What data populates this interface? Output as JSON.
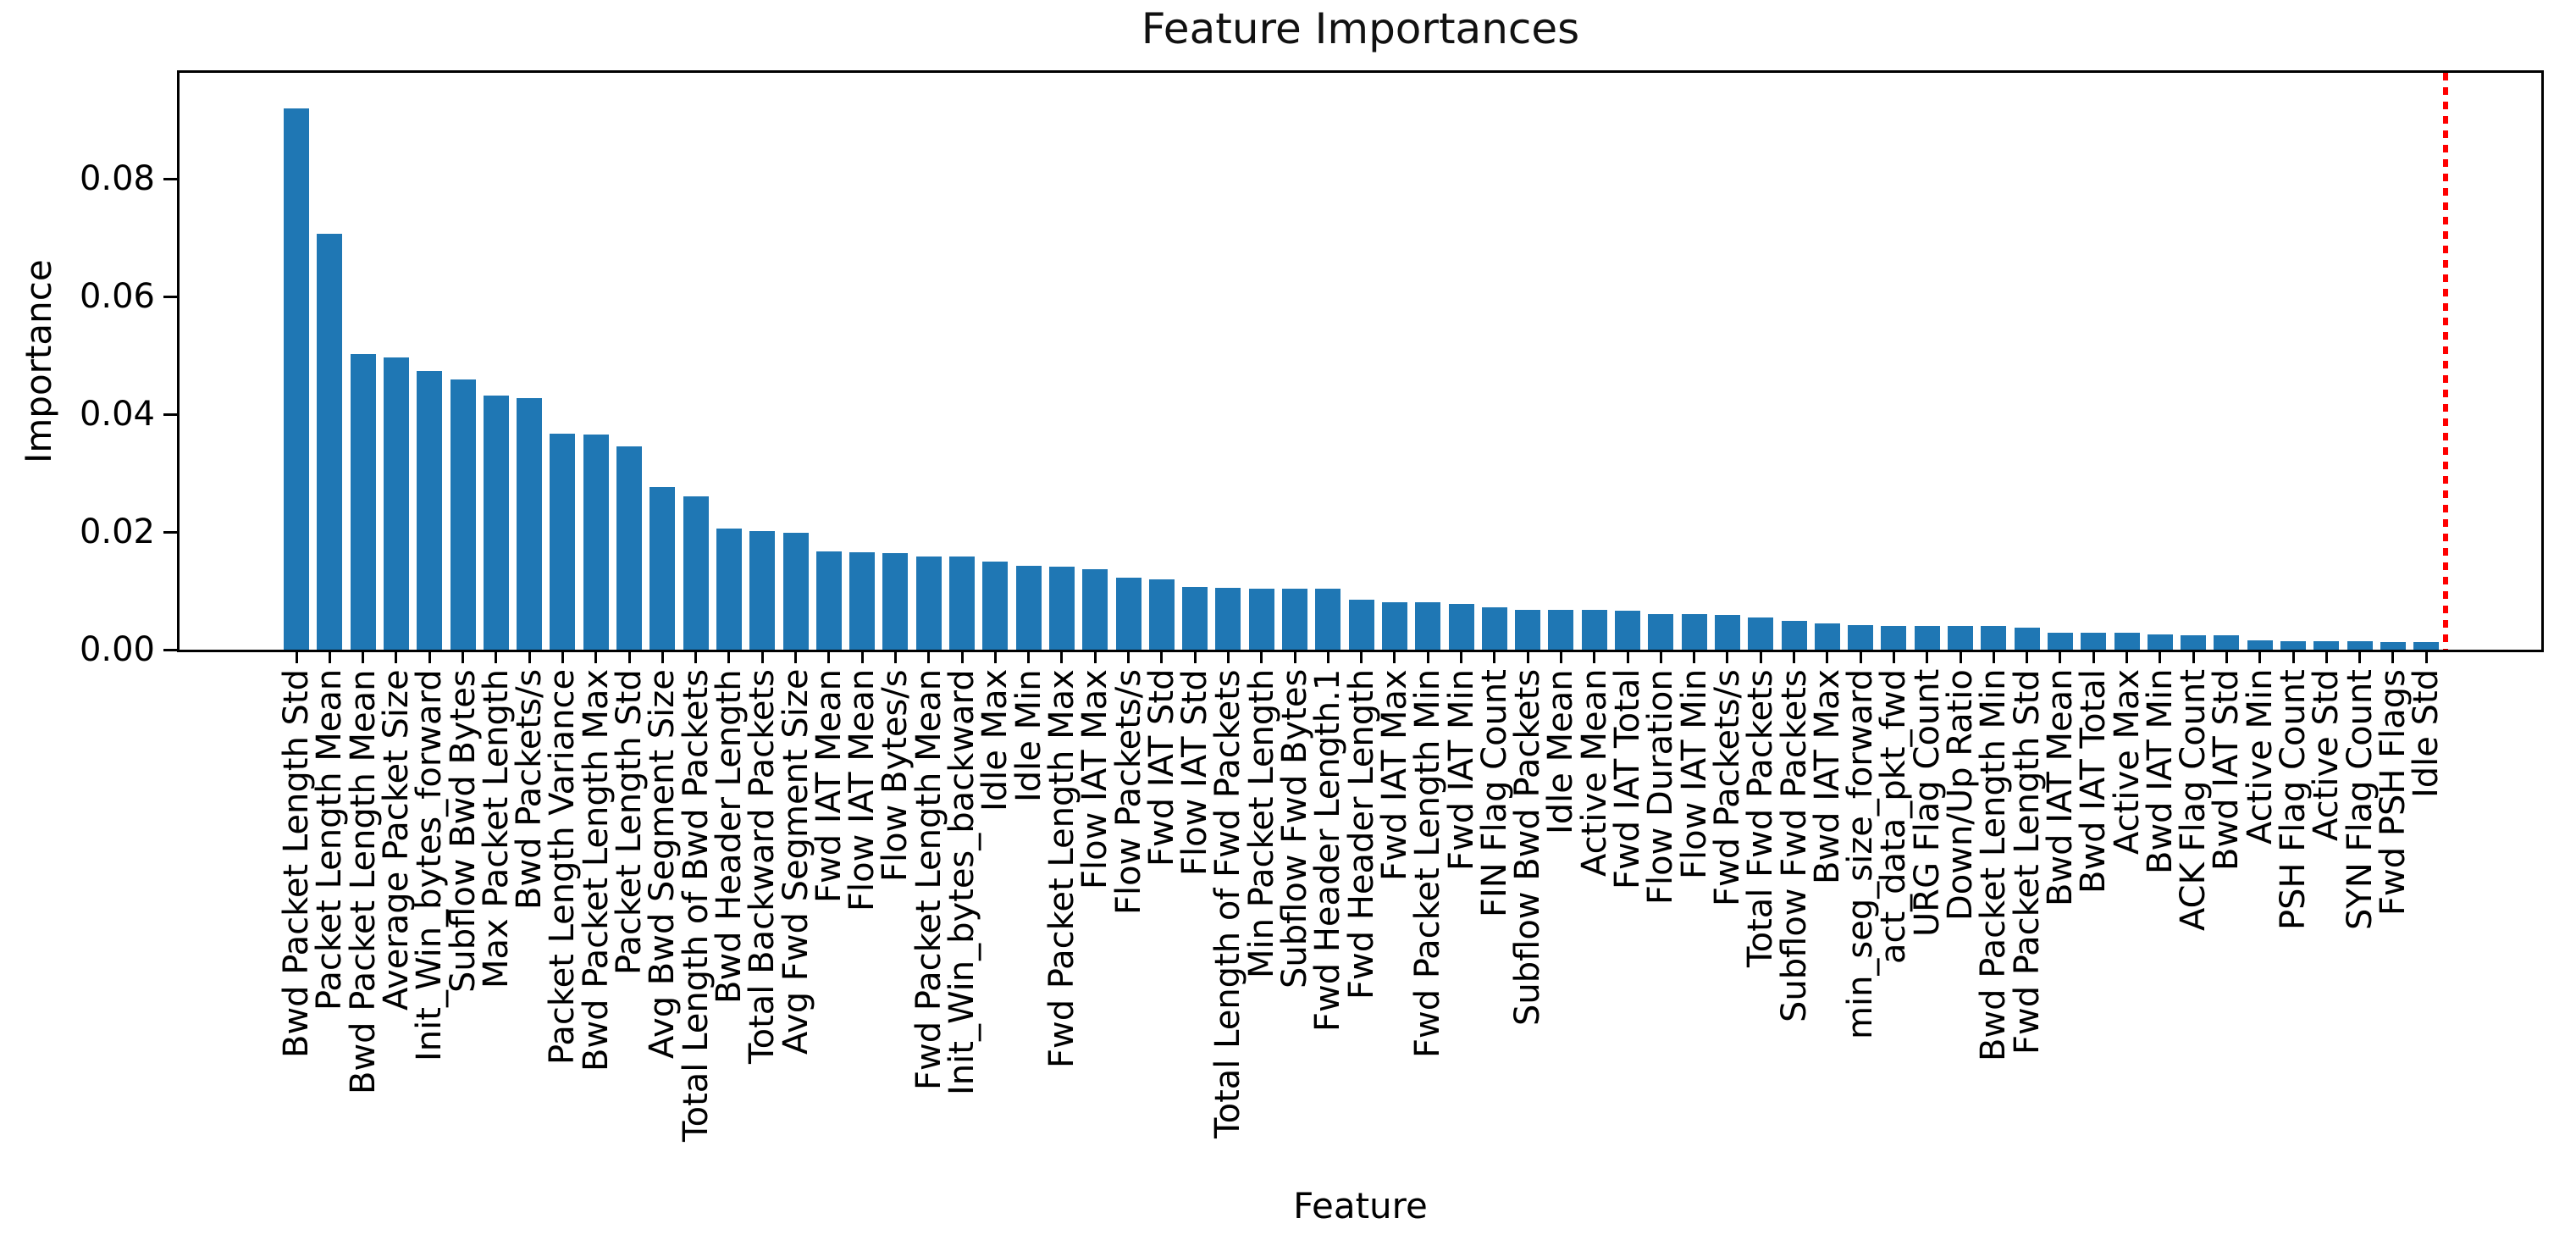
{
  "chart_data": {
    "type": "bar",
    "title": "Feature Importances",
    "xlabel": "Feature",
    "ylabel": "Importance",
    "ylim": [
      0,
      0.098
    ],
    "yticks": [
      0.0,
      0.02,
      0.04,
      0.06,
      0.08
    ],
    "ytick_labels": [
      "0.00",
      "0.02",
      "0.04",
      "0.06",
      "0.08"
    ],
    "grid": false,
    "legend": "none",
    "bar_color": "#1f77b4",
    "threshold_line": {
      "color": "#ff0000",
      "style": "dotted",
      "position": "after-last-bar"
    },
    "categories": [
      "Bwd Packet Length Std",
      "Packet Length Mean",
      "Bwd Packet Length Mean",
      "Average Packet Size",
      "Init_Win_bytes_forward",
      "Subflow Bwd Bytes",
      "Max Packet Length",
      "Bwd Packets/s",
      "Packet Length Variance",
      "Bwd Packet Length Max",
      "Packet Length Std",
      "Avg Bwd Segment Size",
      "Total Length of Bwd Packets",
      "Bwd Header Length",
      "Total Backward Packets",
      "Avg Fwd Segment Size",
      "Fwd IAT Mean",
      "Flow IAT Mean",
      "Flow Bytes/s",
      "Fwd Packet Length Mean",
      "Init_Win_bytes_backward",
      "Idle Max",
      "Idle Min",
      "Fwd Packet Length Max",
      "Flow IAT Max",
      "Flow Packets/s",
      "Fwd IAT Std",
      "Flow IAT Std",
      "Total Length of Fwd Packets",
      "Min Packet Length",
      "Subflow Fwd Bytes",
      "Fwd Header Length.1",
      "Fwd Header Length",
      "Fwd IAT Max",
      "Fwd Packet Length Min",
      "Fwd IAT Min",
      "FIN Flag Count",
      "Subflow Bwd Packets",
      "Idle Mean",
      "Active Mean",
      "Fwd IAT Total",
      "Flow Duration",
      "Flow IAT Min",
      "Fwd Packets/s",
      "Total Fwd Packets",
      "Subflow Fwd Packets",
      "Bwd IAT Max",
      "min_seg_size_forward",
      "act_data_pkt_fwd",
      "URG Flag Count",
      "Down/Up Ratio",
      "Bwd Packet Length Min",
      "Fwd Packet Length Std",
      "Bwd IAT Mean",
      "Bwd IAT Total",
      "Active Max",
      "Bwd IAT Min",
      "ACK Flag Count",
      "Bwd IAT Std",
      "Active Min",
      "PSH Flag Count",
      "Active Std",
      "SYN Flag Count",
      "Fwd PSH Flags",
      "Idle Std"
    ],
    "values": [
      0.092,
      0.0706,
      0.0502,
      0.0497,
      0.0474,
      0.0459,
      0.0432,
      0.0428,
      0.0367,
      0.0366,
      0.0345,
      0.0276,
      0.0261,
      0.0206,
      0.0202,
      0.0198,
      0.0167,
      0.0165,
      0.0164,
      0.0159,
      0.0158,
      0.015,
      0.0143,
      0.0141,
      0.0137,
      0.0123,
      0.0119,
      0.0106,
      0.0105,
      0.0104,
      0.0104,
      0.0103,
      0.0085,
      0.0081,
      0.008,
      0.0077,
      0.0072,
      0.0068,
      0.0067,
      0.0067,
      0.0066,
      0.0061,
      0.006,
      0.0059,
      0.0054,
      0.0049,
      0.0045,
      0.0042,
      0.0041,
      0.0041,
      0.004,
      0.004,
      0.0037,
      0.0029,
      0.0029,
      0.0029,
      0.0026,
      0.0025,
      0.0024,
      0.0016,
      0.0015,
      0.0014,
      0.0014,
      0.0013,
      0.0013
    ]
  }
}
